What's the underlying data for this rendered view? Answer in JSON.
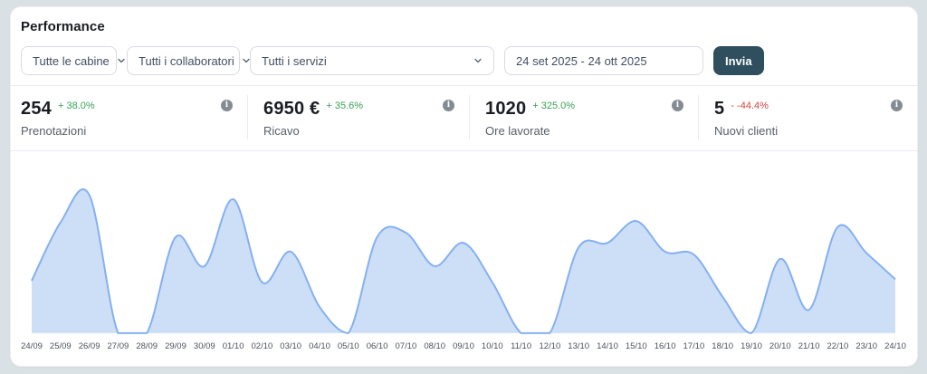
{
  "header": {
    "title": "Performance"
  },
  "filters": {
    "cabins": {
      "value": "Tutte le cabine"
    },
    "collaborators": {
      "value": "Tutti i collaboratori"
    },
    "services": {
      "value": "Tutti i servizi"
    },
    "date_range": {
      "value": "24 set 2025 - 24 ott 2025"
    },
    "submit_label": "Invia"
  },
  "kpis": [
    {
      "value": "254",
      "delta": "+ 38.0%",
      "delta_color": "#3aa356",
      "label": "Prenotazioni",
      "info_glyph": "i"
    },
    {
      "value": "6950 €",
      "delta": "+ 35.6%",
      "delta_color": "#3aa356",
      "label": "Ricavo",
      "info_glyph": "i"
    },
    {
      "value": "1020",
      "delta": "+ 325.0%",
      "delta_color": "#3aa356",
      "label": "Ore lavorate",
      "info_glyph": "i"
    },
    {
      "value": "5",
      "delta": "- -44.4%",
      "delta_color": "#d64540",
      "label": "Nuovi clienti",
      "info_glyph": "i"
    }
  ],
  "colors": {
    "page_bg": "#dae1e5",
    "card_bg": "#ffffff",
    "divider": "#e8eaee",
    "accent_button": "#2f4e5e",
    "positive": "#3aa356",
    "negative": "#d64540",
    "chart_line": "#85b0f0",
    "chart_fill": "#cddff7",
    "axis_label": "#4b525c"
  },
  "chart_data": {
    "type": "area",
    "title": "",
    "xlabel": "",
    "ylabel": "",
    "ylim": [
      0,
      100
    ],
    "grid": false,
    "legend": false,
    "smooth": true,
    "categories": [
      "24/09",
      "25/09",
      "26/09",
      "27/09",
      "28/09",
      "29/09",
      "30/09",
      "01/10",
      "02/10",
      "03/10",
      "04/10",
      "05/10",
      "06/10",
      "07/10",
      "08/10",
      "09/10",
      "10/10",
      "11/10",
      "12/10",
      "13/10",
      "14/10",
      "15/10",
      "16/10",
      "17/10",
      "18/10",
      "19/10",
      "20/10",
      "21/10",
      "22/10",
      "23/10",
      "24/10"
    ],
    "values": [
      36,
      76,
      95,
      0,
      0,
      66,
      46,
      92,
      35,
      56,
      18,
      0,
      66,
      69,
      46,
      62,
      35,
      0,
      0,
      59,
      62,
      77,
      56,
      54,
      25,
      0,
      51,
      16,
      73,
      55,
      37
    ]
  }
}
